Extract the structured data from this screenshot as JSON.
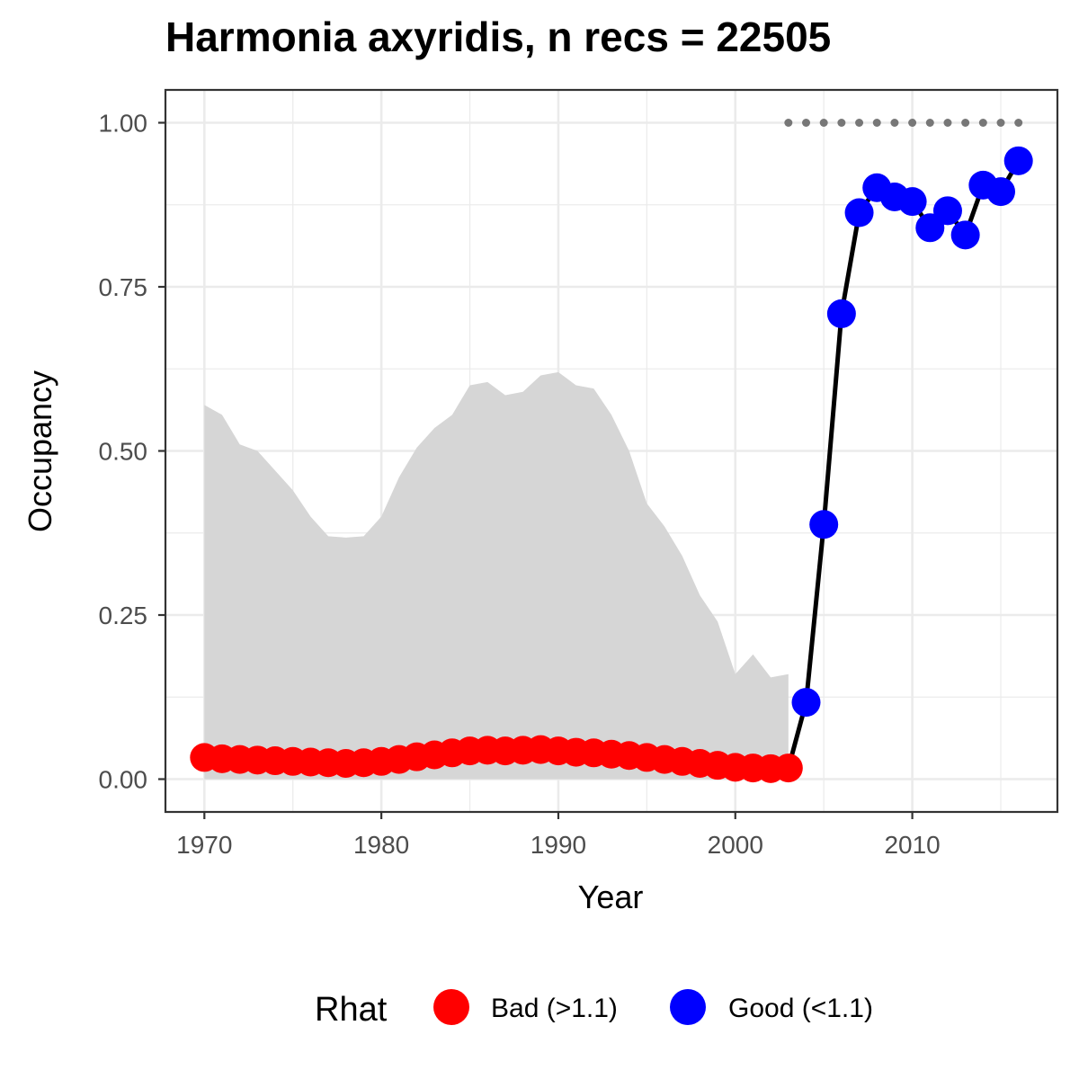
{
  "chart_data": {
    "type": "scatter",
    "title": "Harmonia axyridis, n recs = 22505",
    "xlabel": "Year",
    "ylabel": "Occupancy",
    "xlim": [
      1967.8,
      2018.2
    ],
    "ylim": [
      -0.05,
      1.05
    ],
    "x_ticks": [
      1970,
      1980,
      1990,
      2000,
      2010
    ],
    "x_tick_labels": [
      "1970",
      "1980",
      "1990",
      "2000",
      "2010"
    ],
    "y_ticks": [
      0.0,
      0.25,
      0.5,
      0.75,
      1.0
    ],
    "y_tick_labels": [
      "0.00",
      "0.25",
      "0.50",
      "0.75",
      "1.00"
    ],
    "grid": true,
    "years": [
      1970,
      1971,
      1972,
      1973,
      1974,
      1975,
      1976,
      1977,
      1978,
      1979,
      1980,
      1981,
      1982,
      1983,
      1984,
      1985,
      1986,
      1987,
      1988,
      1989,
      1990,
      1991,
      1992,
      1993,
      1994,
      1995,
      1996,
      1997,
      1998,
      1999,
      2000,
      2001,
      2002,
      2003,
      2004,
      2005,
      2006,
      2007,
      2008,
      2009,
      2010,
      2011,
      2012,
      2013,
      2014,
      2015,
      2016
    ],
    "occupancy": [
      0.033,
      0.031,
      0.03,
      0.029,
      0.028,
      0.027,
      0.026,
      0.025,
      0.024,
      0.025,
      0.027,
      0.03,
      0.034,
      0.037,
      0.04,
      0.043,
      0.044,
      0.043,
      0.044,
      0.045,
      0.043,
      0.041,
      0.04,
      0.038,
      0.036,
      0.033,
      0.03,
      0.027,
      0.024,
      0.021,
      0.018,
      0.017,
      0.016,
      0.017,
      0.117,
      0.388,
      0.709,
      0.863,
      0.901,
      0.887,
      0.88,
      0.84,
      0.866,
      0.829,
      0.905,
      0.895,
      0.942
    ],
    "rhat_status": [
      "Bad",
      "Bad",
      "Bad",
      "Bad",
      "Bad",
      "Bad",
      "Bad",
      "Bad",
      "Bad",
      "Bad",
      "Bad",
      "Bad",
      "Bad",
      "Bad",
      "Bad",
      "Bad",
      "Bad",
      "Bad",
      "Bad",
      "Bad",
      "Bad",
      "Bad",
      "Bad",
      "Bad",
      "Bad",
      "Bad",
      "Bad",
      "Bad",
      "Bad",
      "Bad",
      "Bad",
      "Bad",
      "Bad",
      "Bad",
      "Good",
      "Good",
      "Good",
      "Good",
      "Good",
      "Good",
      "Good",
      "Good",
      "Good",
      "Good",
      "Good",
      "Good",
      "Good"
    ],
    "ci_upper": [
      0.57,
      0.555,
      0.51,
      0.5,
      0.47,
      0.44,
      0.4,
      0.37,
      0.368,
      0.37,
      0.4,
      0.46,
      0.505,
      0.535,
      0.555,
      0.6,
      0.605,
      0.585,
      0.59,
      0.615,
      0.62,
      0.6,
      0.595,
      0.555,
      0.5,
      0.42,
      0.385,
      0.34,
      0.28,
      0.24,
      0.16,
      0.19,
      0.155,
      0.16,
      null,
      null,
      null,
      null,
      null,
      null,
      null,
      null,
      null,
      null,
      null,
      null,
      null
    ],
    "ci_lower": [
      0.0,
      0.0,
      0.0,
      0.0,
      0.0,
      0.0,
      0.0,
      0.0,
      0.0,
      0.0,
      0.0,
      0.0,
      0.0,
      0.0,
      0.0,
      0.0,
      0.0,
      0.0,
      0.0,
      0.0,
      0.0,
      0.0,
      0.0,
      0.0,
      0.0,
      0.0,
      0.0,
      0.0,
      0.0,
      0.0,
      0.0,
      0.0,
      0.0,
      0.0,
      null,
      null,
      null,
      null,
      null,
      null,
      null,
      null,
      null,
      null,
      null,
      null,
      null
    ],
    "line_start_year": 2003,
    "dotted_line": {
      "y": 1.0,
      "x_start": 2003,
      "x_end": 2016
    },
    "colors": {
      "Bad": "#ff0000",
      "Good": "#0000ff",
      "ribbon": "#d6d6d6",
      "line": "#000000",
      "dots": "#777777",
      "grid": "#ebebeb",
      "border": "#333333"
    },
    "legend": {
      "title": "Rhat",
      "position": "bottom",
      "items": [
        {
          "key": "Bad",
          "label": "Bad (>1.1)"
        },
        {
          "key": "Good",
          "label": "Good (<1.1)"
        }
      ]
    }
  }
}
